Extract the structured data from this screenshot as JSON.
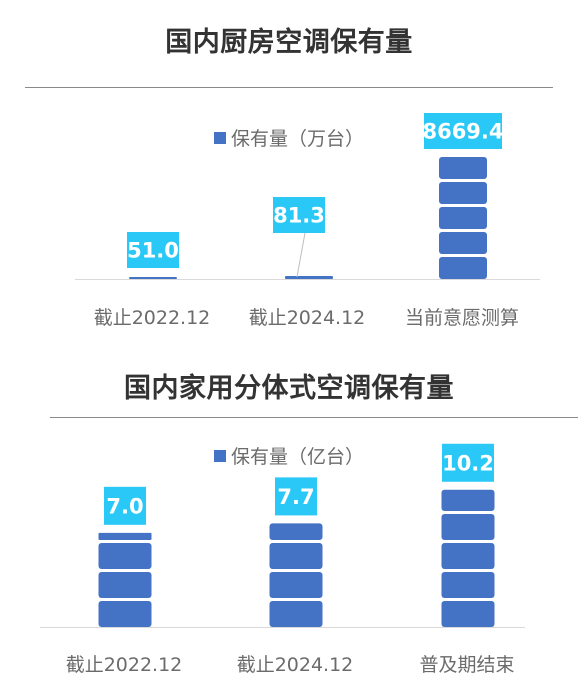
{
  "colors": {
    "bar": "#4472c4",
    "bar_gap": "#ffffff",
    "label_bg": "#29c8f6",
    "label_text": "#ffffff",
    "title": "#333333",
    "axis_text": "#6b6b6b"
  },
  "chart_data": [
    {
      "type": "bar",
      "style": "stacked-block pictograph, value shown in plot only for scale",
      "title": "国内厨房空调保有量",
      "legend": "保有量（万台）",
      "legend_position": "top-center",
      "categories": [
        "截止2022.12",
        "截止2024.12",
        "当前意愿测算"
      ],
      "series": [
        {
          "name": "保有量（万台）",
          "values": [
            51.0,
            81.3,
            8669.4
          ]
        }
      ],
      "data_labels": [
        "51.0",
        "81.3",
        "8669.4"
      ],
      "ylim": [
        0,
        9000
      ],
      "grid": false
    },
    {
      "type": "bar",
      "style": "stacked-block pictograph",
      "title": "国内家用分体式空调保有量",
      "legend": "保有量（亿台）",
      "legend_position": "top-center",
      "categories": [
        "截止2022.12",
        "截止2024.12",
        "普及期结束"
      ],
      "series": [
        {
          "name": "保有量（亿台）",
          "values": [
            7.0,
            7.7,
            10.2
          ]
        }
      ],
      "data_labels": [
        "7.0",
        "7.7",
        "10.2"
      ],
      "ylim": [
        0,
        11
      ],
      "grid": false
    }
  ]
}
